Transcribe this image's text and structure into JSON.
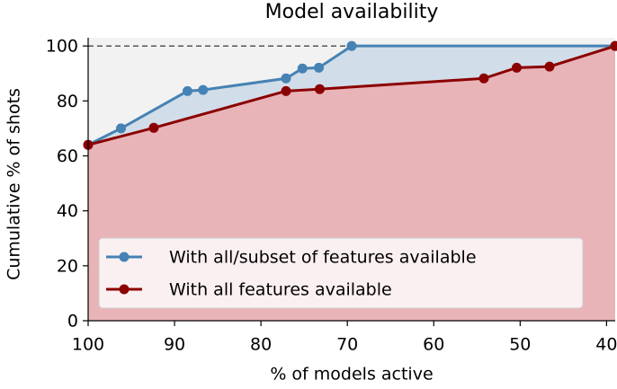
{
  "chart_data": {
    "type": "line",
    "title": "Model availability",
    "x_label": "% of models active",
    "y_label": "Cumulative % of shots",
    "xlim": [
      100,
      39
    ],
    "ylim": [
      0,
      103
    ],
    "xticks": [
      100,
      90,
      80,
      70,
      60,
      50,
      40
    ],
    "yticks": [
      0,
      20,
      40,
      60,
      80,
      100
    ],
    "hline": 100,
    "legend": "lower left",
    "background": "#f2f2f2",
    "series": [
      {
        "name": "With all/subset of features available",
        "color": "#4682b4",
        "fill_color": "#d1dde8",
        "x": [
          100,
          96.2,
          88.5,
          86.7,
          77.1,
          75.2,
          73.3,
          69.5,
          39
        ],
        "values": [
          64,
          70,
          83.6,
          84,
          88.2,
          91.8,
          92.1,
          100,
          100
        ]
      },
      {
        "name": "With all features available",
        "color": "#8b0000",
        "fill_color": "#e8b4b8",
        "x": [
          100,
          92.4,
          77.1,
          73.2,
          54.2,
          50.4,
          46.6,
          39
        ],
        "values": [
          64,
          70.2,
          83.6,
          84.3,
          88.2,
          92.1,
          92.5,
          100
        ]
      }
    ]
  }
}
